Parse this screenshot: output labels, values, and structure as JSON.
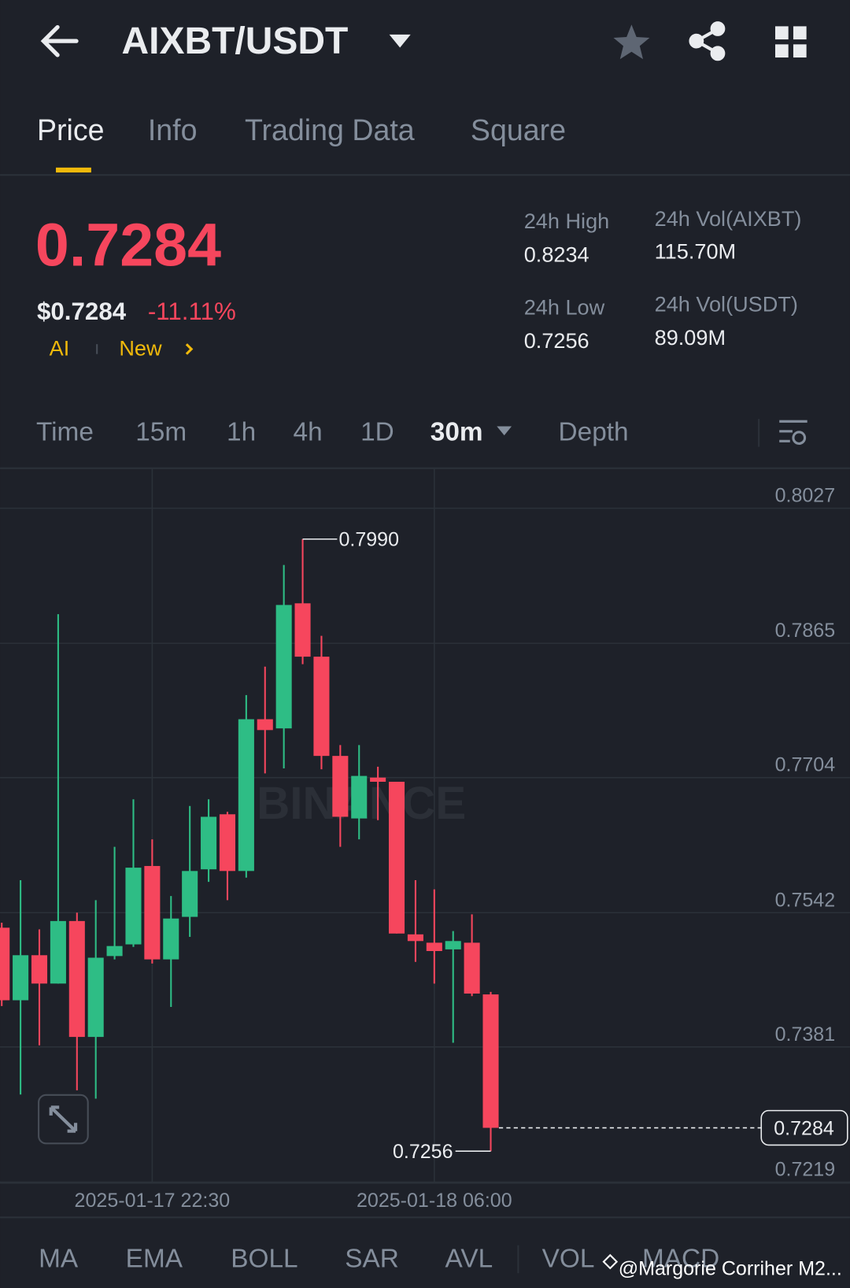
{
  "header": {
    "title": "AIXBT/USDT"
  },
  "tabs": [
    "Price",
    "Info",
    "Trading Data",
    "Square"
  ],
  "ticker": {
    "price": "0.7284",
    "usd_price": "$0.7284",
    "change": "-11.11%",
    "tags": [
      "AI",
      "New"
    ]
  },
  "stats": [
    {
      "label": "24h High",
      "value": "0.8234"
    },
    {
      "label": "24h Vol(AIXBT)",
      "value": "115.70M"
    },
    {
      "label": "24h Low",
      "value": "0.7256"
    },
    {
      "label": "24h Vol(USDT)",
      "value": "89.09M"
    }
  ],
  "intervals": [
    "Time",
    "15m",
    "1h",
    "4h",
    "1D",
    "30m",
    "Depth"
  ],
  "indicators": [
    "MA",
    "EMA",
    "BOLL",
    "SAR",
    "AVL",
    "VOL",
    "MACD"
  ],
  "watermark": "@Margorie Corriher M2...",
  "chart_data": {
    "type": "candlestick",
    "watermark": "BINANCE",
    "up_color": "#2ebd85",
    "down_color": "#f6465d",
    "candles": [
      {
        "open": 0.7524,
        "high": 0.753,
        "low": 0.743,
        "close": 0.7437
      },
      {
        "open": 0.7437,
        "high": 0.7581,
        "low": 0.7324,
        "close": 0.7491
      },
      {
        "open": 0.7491,
        "high": 0.7522,
        "low": 0.7383,
        "close": 0.7457
      },
      {
        "open": 0.7457,
        "high": 0.79,
        "low": 0.7457,
        "close": 0.7532
      },
      {
        "open": 0.7532,
        "high": 0.7542,
        "low": 0.7329,
        "close": 0.7393
      },
      {
        "open": 0.7393,
        "high": 0.7557,
        "low": 0.7319,
        "close": 0.7488
      },
      {
        "open": 0.749,
        "high": 0.7621,
        "low": 0.7486,
        "close": 0.7502
      },
      {
        "open": 0.7504,
        "high": 0.7678,
        "low": 0.7501,
        "close": 0.7596
      },
      {
        "open": 0.7598,
        "high": 0.763,
        "low": 0.7481,
        "close": 0.7486
      },
      {
        "open": 0.7486,
        "high": 0.7562,
        "low": 0.7429,
        "close": 0.7535
      },
      {
        "open": 0.7537,
        "high": 0.767,
        "low": 0.7513,
        "close": 0.7592
      },
      {
        "open": 0.7594,
        "high": 0.7678,
        "low": 0.7579,
        "close": 0.7657
      },
      {
        "open": 0.766,
        "high": 0.7663,
        "low": 0.7557,
        "close": 0.7592
      },
      {
        "open": 0.7592,
        "high": 0.7803,
        "low": 0.7584,
        "close": 0.7774
      },
      {
        "open": 0.7774,
        "high": 0.7837,
        "low": 0.7709,
        "close": 0.7761
      },
      {
        "open": 0.7763,
        "high": 0.7959,
        "low": 0.7715,
        "close": 0.7911
      },
      {
        "open": 0.7913,
        "high": 0.799,
        "low": 0.784,
        "close": 0.7849
      },
      {
        "open": 0.7849,
        "high": 0.7874,
        "low": 0.7714,
        "close": 0.773
      },
      {
        "open": 0.773,
        "high": 0.7743,
        "low": 0.7621,
        "close": 0.7657
      },
      {
        "open": 0.7655,
        "high": 0.7743,
        "low": 0.763,
        "close": 0.7706
      },
      {
        "open": 0.7704,
        "high": 0.7717,
        "low": 0.7653,
        "close": 0.7699
      },
      {
        "open": 0.7699,
        "high": 0.7699,
        "low": 0.7517,
        "close": 0.7517
      },
      {
        "open": 0.7516,
        "high": 0.7581,
        "low": 0.7483,
        "close": 0.7508
      },
      {
        "open": 0.7506,
        "high": 0.757,
        "low": 0.7457,
        "close": 0.7496
      },
      {
        "open": 0.7498,
        "high": 0.752,
        "low": 0.7386,
        "close": 0.7508
      },
      {
        "open": 0.7506,
        "high": 0.754,
        "low": 0.7442,
        "close": 0.7445
      },
      {
        "open": 0.7444,
        "high": 0.7447,
        "low": 0.7256,
        "close": 0.7284
      }
    ],
    "ylim": [
      0.7219,
      0.8075
    ],
    "yticks": [
      0.8027,
      0.7865,
      0.7704,
      0.7542,
      0.7381,
      0.7219
    ],
    "xlim": [
      -0.09,
      45.1
    ],
    "xticks": [
      {
        "value": 8,
        "label": "2025-01-17 22:30"
      },
      {
        "value": 23,
        "label": "2025-01-18 06:00"
      }
    ],
    "annotations": {
      "high": {
        "value": 0.799,
        "label": "0.7990"
      },
      "low": 0.7256,
      "last": 0.7284
    },
    "grid": true
  }
}
